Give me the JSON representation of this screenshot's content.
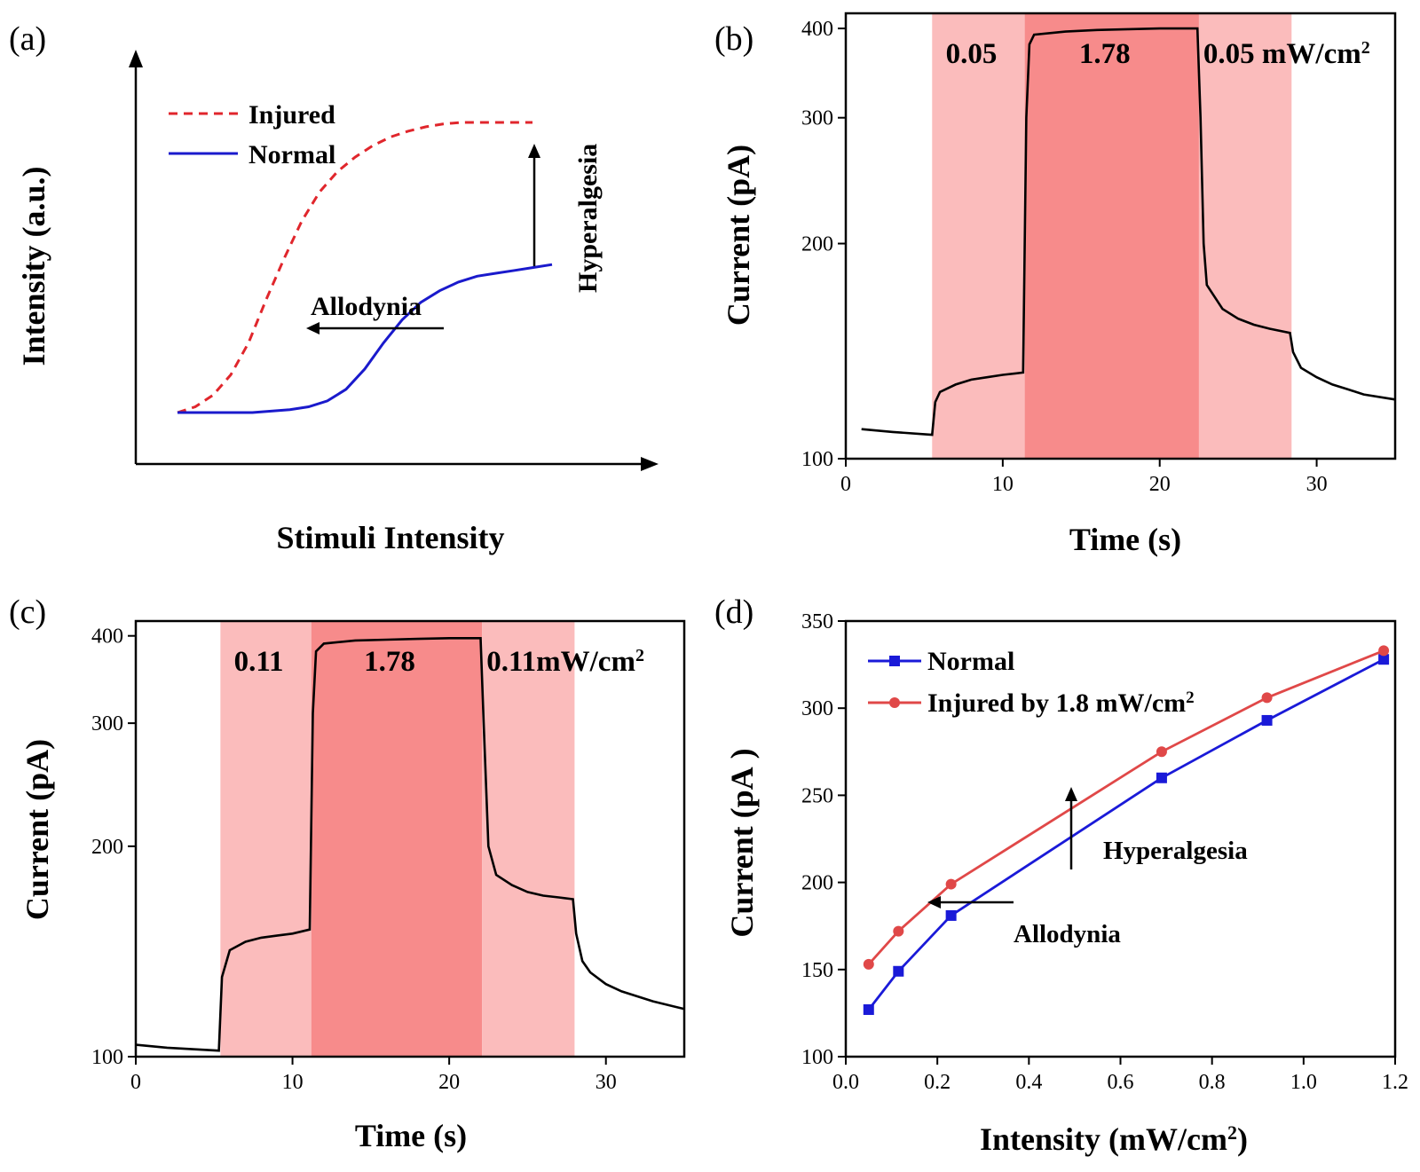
{
  "chart_data": [
    {
      "panel": "(a)",
      "type": "line",
      "title": "",
      "xlabel": "Stimuli Intensity",
      "ylabel": "Intensity (a.u.)",
      "series": [
        {
          "name": "Injured",
          "color": "#e0262c",
          "style": "dashed",
          "x": [
            0,
            0.05,
            0.1,
            0.15,
            0.2,
            0.25,
            0.3,
            0.35,
            0.4,
            0.45,
            0.5,
            0.55,
            0.6,
            0.65,
            0.7,
            0.75,
            0.8,
            0.85,
            0.9,
            0.95,
            1.0
          ],
          "y": [
            0.0,
            0.02,
            0.06,
            0.13,
            0.24,
            0.39,
            0.53,
            0.66,
            0.76,
            0.83,
            0.88,
            0.92,
            0.95,
            0.97,
            0.985,
            0.995,
            1.0,
            1.0,
            1.0,
            1.0,
            1.0
          ]
        },
        {
          "name": "Normal",
          "color": "#1a1acc",
          "style": "solid",
          "x": [
            0,
            0.1,
            0.2,
            0.3,
            0.35,
            0.4,
            0.45,
            0.5,
            0.55,
            0.6,
            0.65,
            0.7,
            0.75,
            0.8,
            0.85,
            0.9,
            0.95,
            1.0
          ],
          "y": [
            0.0,
            0.0,
            0.0,
            0.01,
            0.02,
            0.04,
            0.08,
            0.15,
            0.24,
            0.32,
            0.38,
            0.42,
            0.45,
            0.47,
            0.48,
            0.49,
            0.5,
            0.51
          ]
        }
      ],
      "annotations": [
        "Allodynia",
        "Hyperalgesia"
      ]
    },
    {
      "panel": "(b)",
      "type": "line",
      "xlabel": "Time (s)",
      "ylabel": "Current (pA)",
      "xlim": [
        0,
        35
      ],
      "ylim": [
        100,
        420
      ],
      "yscale": "log",
      "xticks": [
        0,
        10,
        20,
        30
      ],
      "yticks": [
        100,
        200,
        300,
        400
      ],
      "regions": [
        {
          "x0": 5.5,
          "x1": 11.4,
          "label": "0.05",
          "color": "#fbbcbc"
        },
        {
          "x0": 11.4,
          "x1": 22.5,
          "label": "1.78",
          "color": "#f78b8b"
        },
        {
          "x0": 22.5,
          "x1": 28.4,
          "label": "0.05 mW/cm",
          "sup": "2",
          "color": "#fbbcbc"
        }
      ],
      "series": [
        {
          "name": "",
          "color": "#000000",
          "x": [
            1,
            3,
            5.5,
            5.7,
            6,
            7,
            8,
            9,
            10,
            11.3,
            11.5,
            11.7,
            12,
            14,
            16,
            18,
            20,
            22.4,
            22.6,
            22.8,
            23,
            24,
            25,
            26,
            27,
            28.3,
            28.5,
            29,
            30,
            31,
            32,
            33,
            35
          ],
          "y": [
            110,
            109,
            108,
            120,
            124,
            127,
            129,
            130,
            131,
            132,
            300,
            380,
            392,
            396,
            398,
            399,
            400,
            400,
            300,
            200,
            175,
            162,
            157,
            154,
            152,
            150,
            141,
            134,
            130,
            127,
            125,
            123,
            121
          ]
        }
      ]
    },
    {
      "panel": "(c)",
      "type": "line",
      "xlabel": "Time (s)",
      "ylabel": "Current (pA)",
      "xlim": [
        0,
        35
      ],
      "ylim": [
        100,
        420
      ],
      "yscale": "log",
      "xticks": [
        0,
        10,
        20,
        30
      ],
      "yticks": [
        100,
        200,
        300,
        400
      ],
      "regions": [
        {
          "x0": 5.4,
          "x1": 11.2,
          "label": "0.11",
          "color": "#fbbcbc"
        },
        {
          "x0": 11.2,
          "x1": 22.1,
          "label": "1.78",
          "color": "#f78b8b"
        },
        {
          "x0": 22.1,
          "x1": 28.0,
          "label": "0.11mW/cm",
          "sup": "2",
          "color": "#fbbcbc"
        }
      ],
      "series": [
        {
          "name": "",
          "color": "#000000",
          "x": [
            0,
            2,
            5.3,
            5.5,
            6,
            7,
            8,
            9,
            10,
            11.1,
            11.3,
            11.5,
            12,
            14,
            16,
            18,
            20,
            22.0,
            22.2,
            22.5,
            23,
            24,
            25,
            26,
            27,
            27.9,
            28.1,
            28.5,
            29,
            30,
            31,
            33,
            35
          ],
          "y": [
            104,
            103,
            102,
            130,
            142,
            146,
            148,
            149,
            150,
            152,
            310,
            380,
            390,
            394,
            395,
            396,
            397,
            397,
            300,
            200,
            182,
            176,
            172,
            170,
            169,
            168,
            150,
            137,
            132,
            127,
            124,
            120,
            117
          ]
        }
      ]
    },
    {
      "panel": "(d)",
      "type": "line",
      "xlabel": "Intensity (mW/cm",
      "xlabel_sup": "2",
      "xlabel_end": ")",
      "ylabel": "Current (pA )",
      "xlim": [
        0.0,
        1.2
      ],
      "ylim": [
        100,
        350
      ],
      "xticks": [
        "0.0",
        "0.2",
        "0.4",
        "0.6",
        "0.8",
        "1.0",
        "1.2"
      ],
      "yticks": [
        100,
        150,
        200,
        250,
        300,
        350
      ],
      "legend_position": "top-left",
      "series": [
        {
          "name": "Normal",
          "color": "#1a1ad8",
          "marker": "square",
          "x": [
            0.05,
            0.115,
            0.23,
            0.69,
            0.92,
            1.175
          ],
          "y": [
            127,
            149,
            181,
            260,
            293,
            328
          ]
        },
        {
          "name": "Injured by 1.8 mW/cm",
          "name_sup": "2",
          "color": "#e04848",
          "marker": "circle",
          "x": [
            0.05,
            0.115,
            0.23,
            0.69,
            0.92,
            1.175
          ],
          "y": [
            153,
            172,
            199,
            275,
            306,
            333
          ]
        }
      ],
      "annotations": [
        "Hyperalgesia",
        "Allodynia"
      ]
    }
  ]
}
